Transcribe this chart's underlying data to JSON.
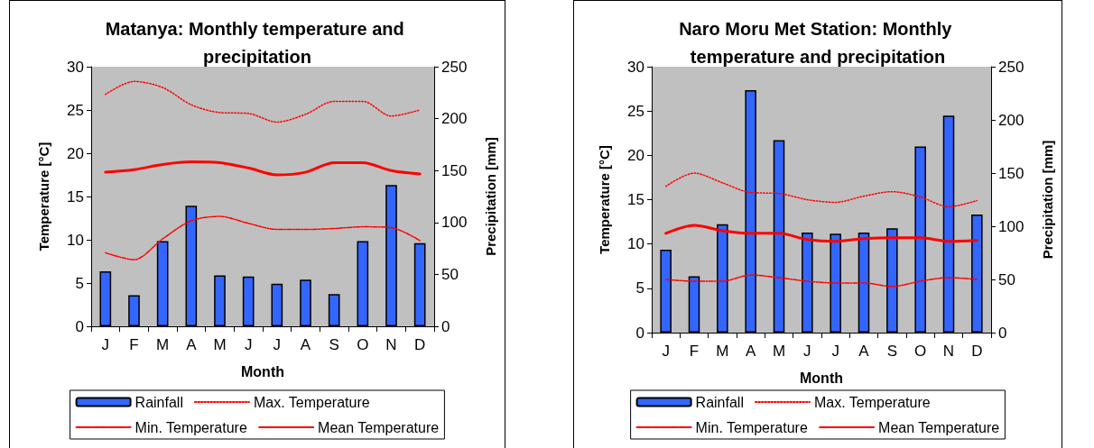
{
  "chart_data": [
    {
      "type": "bar",
      "title": "Matanya: Monthly temperature and precipitation",
      "xlabel": "Month",
      "ylabel": "Temperature [°C]",
      "y2label": "Precipitation [mm]",
      "categories": [
        "J",
        "F",
        "M",
        "A",
        "M",
        "J",
        "J",
        "A",
        "S",
        "O",
        "N",
        "D"
      ],
      "ylim": [
        0,
        30
      ],
      "yticks": [
        0,
        5,
        10,
        15,
        20,
        25,
        30
      ],
      "y2lim": [
        0,
        250
      ],
      "y2ticks": [
        0,
        50,
        100,
        150,
        200,
        250
      ],
      "grid": false,
      "legend": "bottom",
      "series": [
        {
          "name": "Rainfall",
          "axis": "y2",
          "color": "#3366ff",
          "values": [
            53,
            30,
            82,
            116,
            49,
            48,
            41,
            45,
            31,
            82,
            136,
            80
          ]
        },
        {
          "name": "Max. Temperature",
          "type": "line",
          "line_style": "dotted",
          "color": "#ff0000",
          "values": [
            26.8,
            28.3,
            27.6,
            25.6,
            24.7,
            24.6,
            23.6,
            24.5,
            26.0,
            26.0,
            24.3,
            25.0
          ]
        },
        {
          "name": "Min. Temperature",
          "type": "line",
          "line_style": "dashed",
          "color": "#ff0000",
          "values": [
            8.5,
            7.7,
            10.1,
            12.2,
            12.7,
            11.9,
            11.2,
            11.2,
            11.3,
            11.5,
            11.4,
            9.9
          ]
        },
        {
          "name": "Mean Temperature",
          "type": "line",
          "line_style": "solid",
          "color": "#ff0000",
          "values": [
            17.8,
            18.1,
            18.7,
            19.0,
            18.9,
            18.3,
            17.5,
            17.8,
            18.9,
            18.9,
            18.0,
            17.6
          ]
        }
      ]
    },
    {
      "type": "bar",
      "title": "Naro Moru Met Station: Monthly temperature and precipitation",
      "xlabel": "Month",
      "ylabel": "Temperature [°C]",
      "y2label": "Precipitation [mm]",
      "categories": [
        "J",
        "F",
        "M",
        "A",
        "M",
        "J",
        "J",
        "A",
        "S",
        "O",
        "N",
        "D"
      ],
      "ylim": [
        0,
        30
      ],
      "yticks": [
        0,
        5,
        10,
        15,
        20,
        25,
        30
      ],
      "y2lim": [
        0,
        250
      ],
      "y2ticks": [
        0,
        50,
        100,
        150,
        200,
        250
      ],
      "grid": false,
      "legend": "bottom",
      "series": [
        {
          "name": "Rainfall",
          "axis": "y2",
          "color": "#3366ff",
          "values": [
            78,
            53,
            102,
            228,
            181,
            94,
            93,
            94,
            98,
            175,
            204,
            111
          ]
        },
        {
          "name": "Max. Temperature",
          "type": "line",
          "line_style": "dotted",
          "color": "#ff0000",
          "values": [
            16.5,
            18.0,
            16.9,
            15.8,
            15.7,
            15.0,
            14.7,
            15.4,
            15.9,
            15.3,
            14.2,
            14.9
          ]
        },
        {
          "name": "Min. Temperature",
          "type": "line",
          "line_style": "dashed",
          "color": "#ff0000",
          "values": [
            6.0,
            5.8,
            5.8,
            6.5,
            6.2,
            5.8,
            5.6,
            5.6,
            5.2,
            5.8,
            6.2,
            6.0
          ]
        },
        {
          "name": "Mean Temperature",
          "type": "line",
          "line_style": "solid",
          "color": "#ff0000",
          "values": [
            11.2,
            12.1,
            11.5,
            11.2,
            11.2,
            10.5,
            10.3,
            10.6,
            10.7,
            10.7,
            10.3,
            10.4
          ]
        }
      ]
    }
  ]
}
